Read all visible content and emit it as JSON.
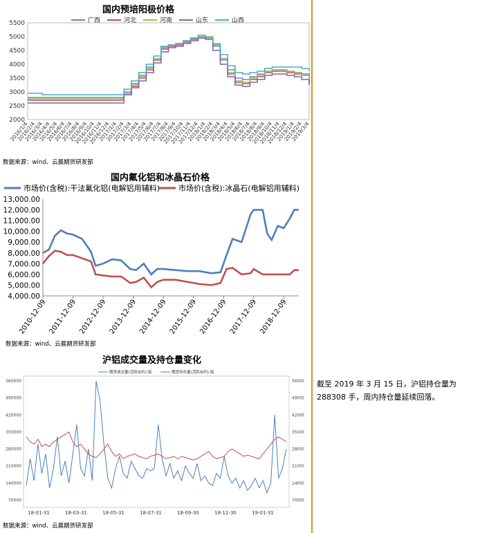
{
  "chart_data": [
    {
      "type": "line",
      "title": "国内预培阳极价格",
      "ylim": [
        2000,
        5500
      ],
      "yticks": [
        2000,
        2500,
        3000,
        3500,
        4000,
        4500,
        5000,
        5500
      ],
      "xtick_labels": [
        "2016/1/4",
        "2016/2/4",
        "2016/3/4",
        "2016/4/4",
        "2016/5/4",
        "2016/6/4",
        "2016/7/4",
        "2016/8/4",
        "2016/9/4",
        "2016/10/4",
        "2016/11/4",
        "2016/12/4",
        "2017/1/4",
        "2017/2/4",
        "2017/3/4",
        "2017/4/4",
        "2017/5/4",
        "2017/6/4",
        "2017/7/4",
        "2017/8/4",
        "2017/9/4",
        "2017/10/4",
        "2017/11/4",
        "2017/12/4",
        "2018/1/4",
        "2018/2/4",
        "2018/3/4",
        "2018/4/4",
        "2018/5/4",
        "2018/6/4",
        "2018/7/4",
        "2018/8/4",
        "2018/9/4",
        "2018/10/4",
        "2018/11/4",
        "2018/12/4",
        "2019/1/4",
        "2019/2/4",
        "2019/3/4"
      ],
      "legend_position": "top",
      "grid": false,
      "series": [
        {
          "name": "广西",
          "color": "#6a87c8",
          "values": [
            2800,
            2800,
            2800,
            2800,
            2800,
            2800,
            2800,
            2800,
            2800,
            2800,
            2800,
            2800,
            2800,
            3000,
            3300,
            3600,
            3900,
            4200,
            4600,
            4700,
            4750,
            4850,
            4950,
            5050,
            5000,
            4700,
            4200,
            3800,
            3500,
            3450,
            3550,
            3650,
            3750,
            3800,
            3800,
            3750,
            3700,
            3650,
            3500
          ]
        },
        {
          "name": "河北",
          "color": "#c0504d",
          "values": [
            2700,
            2700,
            2700,
            2700,
            2700,
            2700,
            2700,
            2700,
            2700,
            2700,
            2700,
            2700,
            2700,
            2900,
            3200,
            3500,
            3800,
            4150,
            4550,
            4650,
            4700,
            4800,
            4900,
            4950,
            4950,
            4650,
            4150,
            3650,
            3350,
            3300,
            3450,
            3550,
            3700,
            3750,
            3750,
            3700,
            3650,
            3600,
            3400
          ]
        },
        {
          "name": "河南",
          "color": "#9bbb59",
          "values": [
            2750,
            2750,
            2750,
            2750,
            2750,
            2750,
            2750,
            2750,
            2750,
            2750,
            2750,
            2750,
            2750,
            2950,
            3250,
            3550,
            3850,
            4200,
            4650,
            4700,
            4750,
            4850,
            4950,
            5050,
            5000,
            4650,
            4150,
            3700,
            3400,
            3350,
            3500,
            3600,
            3750,
            3800,
            3800,
            3750,
            3700,
            3600,
            3300
          ]
        },
        {
          "name": "山东",
          "color": "#8064a2",
          "values": [
            2600,
            2600,
            2600,
            2600,
            2600,
            2600,
            2600,
            2600,
            2600,
            2600,
            2600,
            2600,
            2600,
            2900,
            3150,
            3400,
            3700,
            4050,
            4450,
            4600,
            4650,
            4750,
            4850,
            4950,
            4900,
            4500,
            4000,
            3550,
            3250,
            3200,
            3350,
            3450,
            3600,
            3650,
            3650,
            3600,
            3550,
            3450,
            3250
          ]
        },
        {
          "name": "山西",
          "color": "#4bacc6",
          "values": [
            2950,
            2950,
            2900,
            2900,
            2900,
            2900,
            2900,
            2900,
            2900,
            2900,
            2900,
            2900,
            2900,
            3100,
            3400,
            3700,
            4000,
            4300,
            4650,
            4700,
            4750,
            4850,
            4950,
            5000,
            4950,
            4750,
            4350,
            3950,
            3700,
            3650,
            3700,
            3750,
            3850,
            3900,
            3900,
            3900,
            3900,
            3850,
            3750
          ]
        }
      ]
    },
    {
      "type": "line",
      "title": "国内氟化铝和冰晶石价格",
      "ylim": [
        4000,
        13000
      ],
      "yticks": [
        "4,000.00",
        "5,000.00",
        "6,000.00",
        "7,000.00",
        "8,000.00",
        "9,000.00",
        "10,000.00",
        "11,000.00",
        "12,000.00",
        "13,000.00"
      ],
      "xtick_labels": [
        "2010-12-09",
        "2011-12-09",
        "2012-12-09",
        "2013-12-09",
        "2014-12-09",
        "2015-12-09",
        "2016-12-09",
        "2017-12-09",
        "2018-12-09"
      ],
      "legend_position": "top",
      "grid": false,
      "series": [
        {
          "name": "市场价(含税):干法氟化铝(电解铝用辅料)",
          "color": "#4a7ebb",
          "x": [
            0,
            0.2,
            0.4,
            0.6,
            0.8,
            1.0,
            1.3,
            1.6,
            1.75,
            2.0,
            2.3,
            2.6,
            2.9,
            3.1,
            3.35,
            3.6,
            3.8,
            4.0,
            4.4,
            4.8,
            5.2,
            5.6,
            5.9,
            6.1,
            6.3,
            6.6,
            6.9,
            7.0,
            7.3,
            7.45,
            7.6,
            7.8,
            8.0,
            8.2,
            8.35,
            8.5
          ],
          "values": [
            8000,
            8300,
            9600,
            10100,
            9800,
            9700,
            9300,
            8100,
            6800,
            7000,
            7400,
            7300,
            6500,
            6400,
            7000,
            6000,
            6500,
            6500,
            6400,
            6300,
            6300,
            6100,
            6200,
            7800,
            9300,
            9000,
            11600,
            12000,
            12000,
            9800,
            9200,
            10500,
            10300,
            11200,
            12000,
            12000
          ]
        },
        {
          "name": "市场价(含税):冰晶石(电解铝用辅料)",
          "color": "#c0504d",
          "x": [
            0,
            0.2,
            0.4,
            0.6,
            0.8,
            1.0,
            1.3,
            1.6,
            1.75,
            2.0,
            2.3,
            2.6,
            2.9,
            3.1,
            3.35,
            3.6,
            3.8,
            4.0,
            4.4,
            4.8,
            5.2,
            5.6,
            5.9,
            6.1,
            6.3,
            6.6,
            6.9,
            7.0,
            7.3,
            7.45,
            7.6,
            7.8,
            8.0,
            8.2,
            8.35,
            8.5
          ],
          "values": [
            7000,
            7700,
            8200,
            8100,
            7800,
            7800,
            7500,
            7200,
            6000,
            5900,
            5800,
            5800,
            5200,
            5300,
            5700,
            4800,
            5300,
            5500,
            5500,
            5300,
            5100,
            5000,
            5200,
            6500,
            6600,
            6000,
            6100,
            6500,
            6000,
            6000,
            6000,
            6000,
            6000,
            6000,
            6400,
            6400
          ]
        }
      ]
    },
    {
      "type": "line",
      "title": "沪铝成交量及持仓量变化",
      "yticks_left": [
        "70000",
        "140000",
        "210000",
        "280000",
        "350000",
        "420000",
        "490000",
        "560000"
      ],
      "yticks_right": [
        "70000",
        "140000",
        "210000",
        "280000",
        "350000",
        "420000",
        "490000",
        "560000"
      ],
      "ylim": [
        40000,
        580000
      ],
      "xtick_labels": [
        "18-01-31",
        "18-03-31",
        "18-05-31",
        "18-07-31",
        "18-09-30",
        "18-11-30",
        "19-01-31"
      ],
      "legend_position": "top",
      "grid": false,
      "series": [
        {
          "name": "期货成交量(活跃合约):铝",
          "color": "#4a7ebb",
          "values": [
            130000,
            240000,
            150000,
            300000,
            180000,
            260000,
            120000,
            200000,
            330000,
            170000,
            230000,
            140000,
            260000,
            380000,
            200000,
            170000,
            280000,
            150000,
            560000,
            480000,
            300000,
            160000,
            120000,
            200000,
            250000,
            180000,
            160000,
            230000,
            200000,
            170000,
            160000,
            200000,
            190000,
            200000,
            380000,
            240000,
            170000,
            220000,
            160000,
            190000,
            150000,
            210000,
            180000,
            160000,
            220000,
            150000,
            170000,
            140000,
            130000,
            180000,
            160000,
            250000,
            170000,
            140000,
            160000,
            120000,
            150000,
            110000,
            130000,
            160000,
            120000,
            150000,
            100000,
            140000,
            420000,
            160000,
            200000,
            280000
          ]
        },
        {
          "name": "期货持仓量(活跃合约):铝",
          "color": "#c0504d",
          "values": [
            330000,
            310000,
            300000,
            320000,
            290000,
            300000,
            290000,
            310000,
            320000,
            330000,
            340000,
            350000,
            310000,
            290000,
            300000,
            280000,
            260000,
            250000,
            245000,
            260000,
            280000,
            300000,
            270000,
            250000,
            260000,
            240000,
            250000,
            255000,
            260000,
            250000,
            245000,
            240000,
            250000,
            255000,
            260000,
            250000,
            240000,
            245000,
            250000,
            240000,
            250000,
            245000,
            240000,
            235000,
            240000,
            250000,
            260000,
            270000,
            250000,
            240000,
            245000,
            250000,
            270000,
            280000,
            270000,
            260000,
            250000,
            255000,
            250000,
            245000,
            240000,
            260000,
            280000,
            300000,
            320000,
            330000,
            320000,
            310000
          ]
        }
      ]
    }
  ],
  "sources": {
    "chart1": "数据来源：wind、云晨期货研发部",
    "chart2": "数据来源：wind、云晨期货研发部",
    "chart3": "数据来源：wind、云晨期货研发部"
  },
  "note": "截至 2019 年 3 月 15 日，沪铝持仓量为 288308 手，周内持仓量延续回落。"
}
